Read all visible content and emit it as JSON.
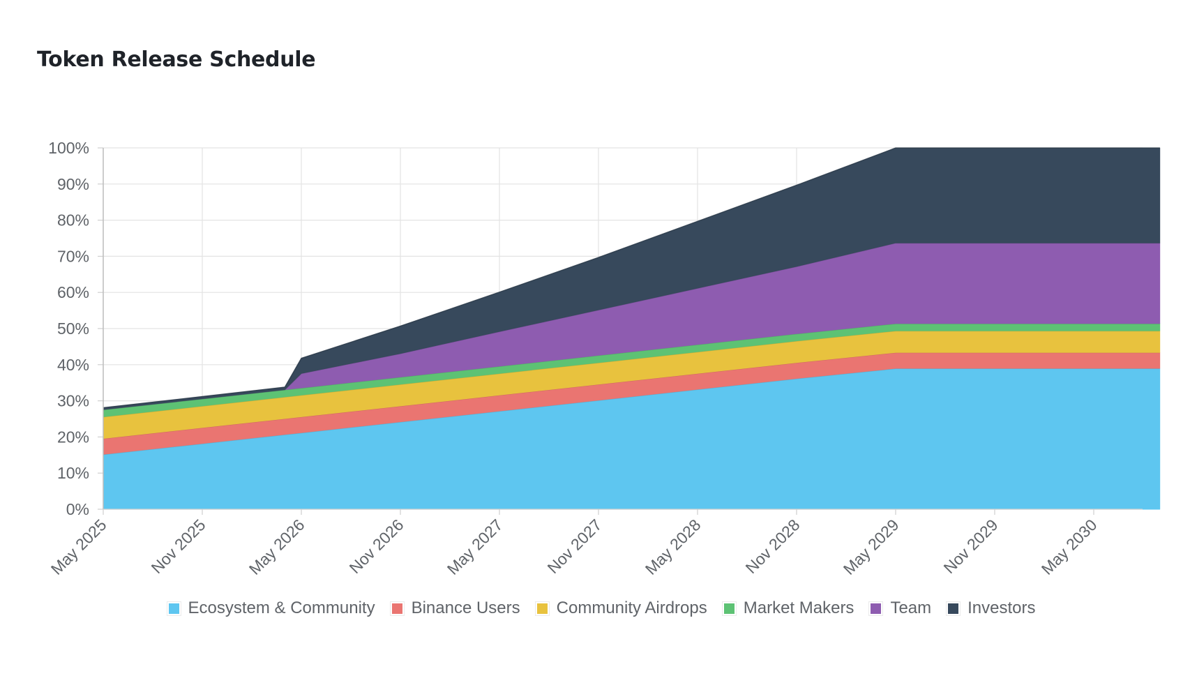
{
  "chart_data": {
    "type": "area",
    "stacked": true,
    "title": "Token Release Schedule",
    "xlabel": "",
    "ylabel": "",
    "ylim": [
      0,
      100
    ],
    "y_unit": "%",
    "y_ticks": [
      "0%",
      "10%",
      "20%",
      "30%",
      "40%",
      "50%",
      "60%",
      "70%",
      "80%",
      "90%",
      "100%"
    ],
    "x_ticks": [
      "May 2025",
      "Nov 2025",
      "May 2026",
      "Nov 2026",
      "May 2027",
      "Nov 2027",
      "May 2028",
      "Nov 2028",
      "May 2029",
      "Nov 2029",
      "May 2030"
    ],
    "x": [
      "May 2025",
      "Nov 2025",
      "Apr 2026",
      "May 2026",
      "Nov 2026",
      "May 2027",
      "Nov 2027",
      "May 2028",
      "Nov 2028",
      "May 2029",
      "Nov 2029",
      "May 2030",
      "Sep 2030"
    ],
    "grid": true,
    "legend_position": "bottom",
    "series": [
      {
        "name": "Ecosystem & Community",
        "color": "#5ec6f0",
        "values": [
          15.2,
          18.2,
          20.7,
          21.2,
          24.2,
          27.2,
          30.2,
          33.2,
          36.2,
          39.0,
          39.0,
          39.0,
          39.0
        ]
      },
      {
        "name": "Binance Users",
        "color": "#ea7571",
        "values": [
          4.4,
          4.4,
          4.4,
          4.4,
          4.4,
          4.4,
          4.4,
          4.4,
          4.4,
          4.4,
          4.4,
          4.4,
          4.4
        ]
      },
      {
        "name": "Community Airdrops",
        "color": "#e8c23e",
        "values": [
          6.0,
          6.0,
          6.0,
          6.0,
          6.0,
          6.0,
          6.0,
          6.0,
          6.0,
          6.0,
          6.0,
          6.0,
          6.0
        ]
      },
      {
        "name": "Market Makers",
        "color": "#5dc274",
        "values": [
          2.0,
          2.0,
          2.0,
          2.0,
          2.0,
          2.0,
          2.0,
          2.0,
          2.0,
          2.0,
          2.0,
          2.0,
          2.0
        ]
      },
      {
        "name": "Team",
        "color": "#8e5cb0",
        "values": [
          0,
          0,
          0,
          4.0,
          6.5,
          9.6,
          12.6,
          15.6,
          18.6,
          22.3,
          22.3,
          22.3,
          22.3
        ]
      },
      {
        "name": "Investors",
        "color": "#37495c",
        "values": [
          0.5,
          0.6,
          0.7,
          4.2,
          7.6,
          10.9,
          14.5,
          18.5,
          22.5,
          26.3,
          26.3,
          26.3,
          26.3
        ]
      }
    ]
  }
}
